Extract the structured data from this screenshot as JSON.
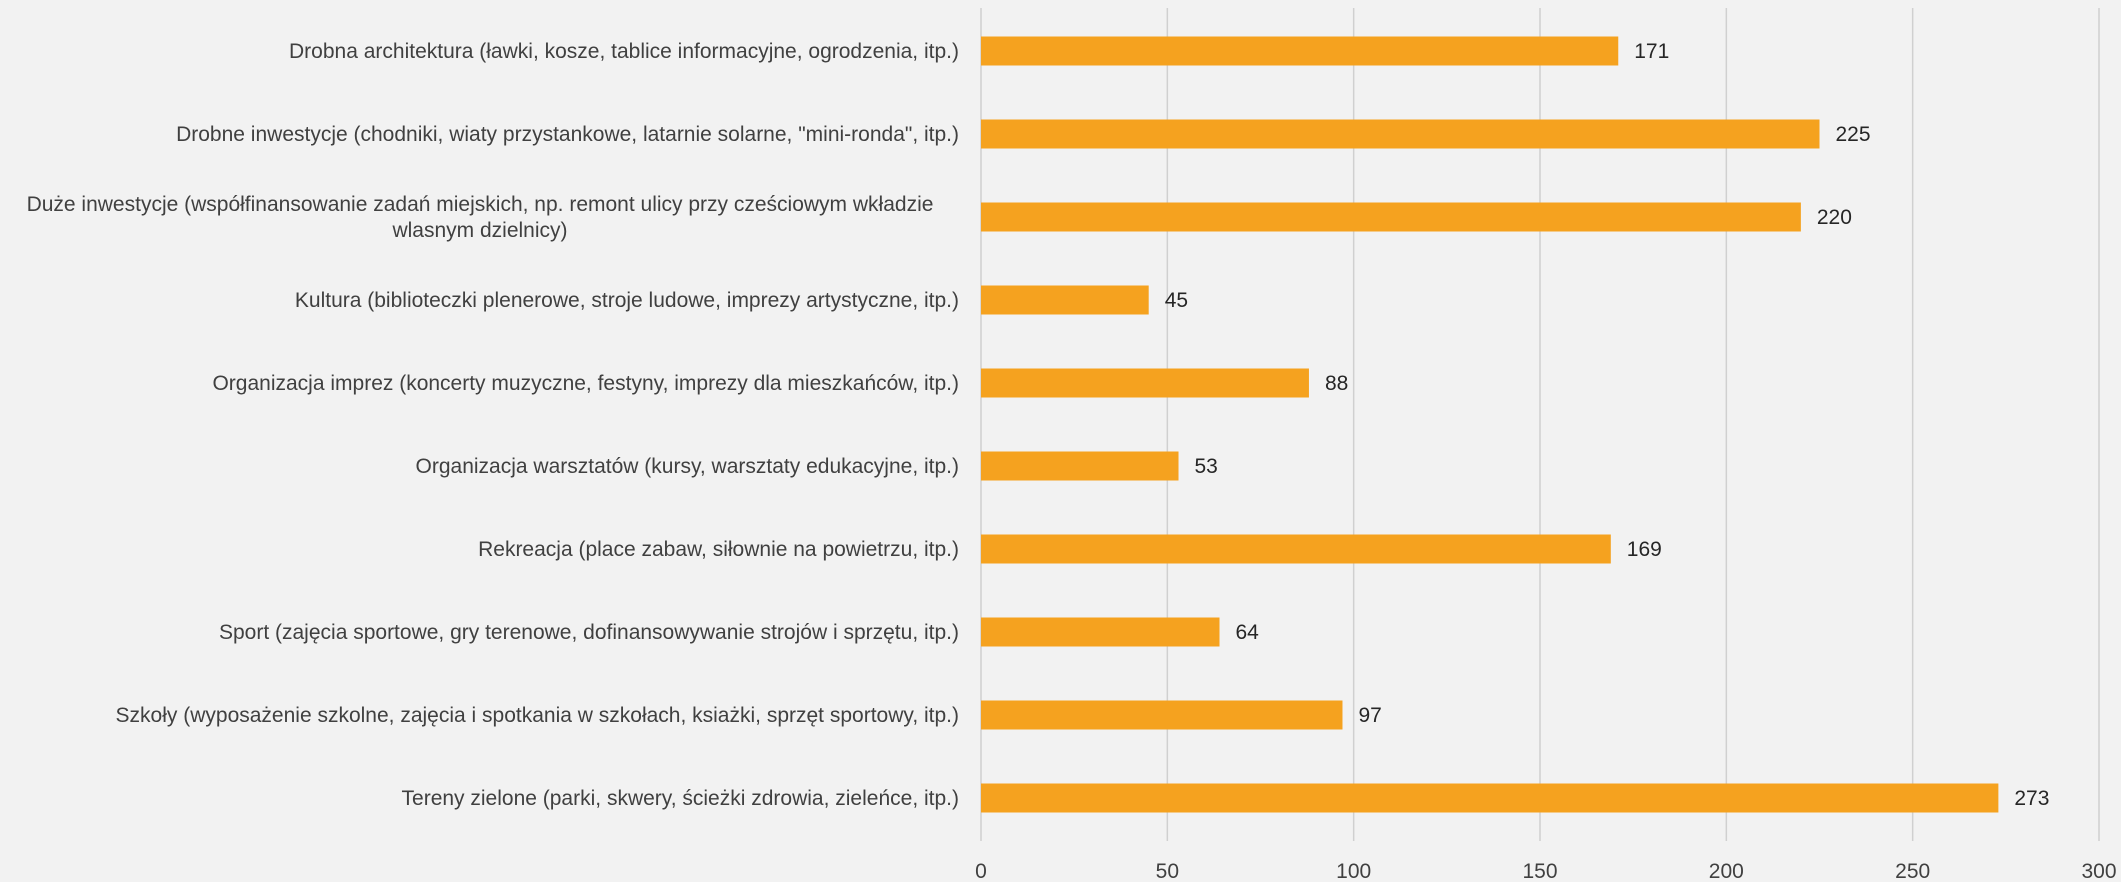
{
  "chart_data": {
    "type": "bar",
    "orientation": "horizontal",
    "categories": [
      [
        "Drobna architektura (ławki, kosze, tablice informacyjne, ogrodzenia, itp.)"
      ],
      [
        "Drobne inwestycje (chodniki, wiaty przystankowe, latarnie solarne, \"mini-ronda\", itp.)"
      ],
      [
        "Duże inwestycje (współfinansowanie zadań miejskich, np. remont ulicy przy cześciowym wkładzie",
        "wlasnym dzielnicy)"
      ],
      [
        "Kultura (biblioteczki plenerowe, stroje ludowe, imprezy artystyczne, itp.)"
      ],
      [
        "Organizacja imprez (koncerty muzyczne, festyny, imprezy dla mieszkańców, itp.)"
      ],
      [
        "Organizacja warsztatów (kursy, warsztaty edukacyjne, itp.)"
      ],
      [
        "Rekreacja (place zabaw, siłownie na powietrzu, itp.)"
      ],
      [
        "Sport (zajęcia sportowe, gry terenowe, dofinansowywanie strojów i sprzętu, itp.)"
      ],
      [
        "Szkoły (wyposażenie szkolne, zajęcia i spotkania w szkołach, ksiażki, sprzęt sportowy, itp.)"
      ],
      [
        "Tereny zielone (parki, skwery, ścieżki zdrowia, zieleńce, itp.)"
      ]
    ],
    "values": [
      171,
      225,
      220,
      45,
      88,
      53,
      169,
      64,
      97,
      273
    ],
    "value_labels": [
      "171",
      "225",
      "220",
      "45",
      "88",
      "53",
      "169",
      "64",
      "97",
      "273"
    ],
    "xlim": [
      0,
      300
    ],
    "xticks": [
      0,
      50,
      100,
      150,
      200,
      250,
      300
    ],
    "xtick_labels": [
      "0",
      "50",
      "100",
      "150",
      "200",
      "250",
      "300"
    ],
    "grid": true,
    "legend": false,
    "bar_color": "#f5a21f",
    "background_color": "#f2f2f2"
  }
}
